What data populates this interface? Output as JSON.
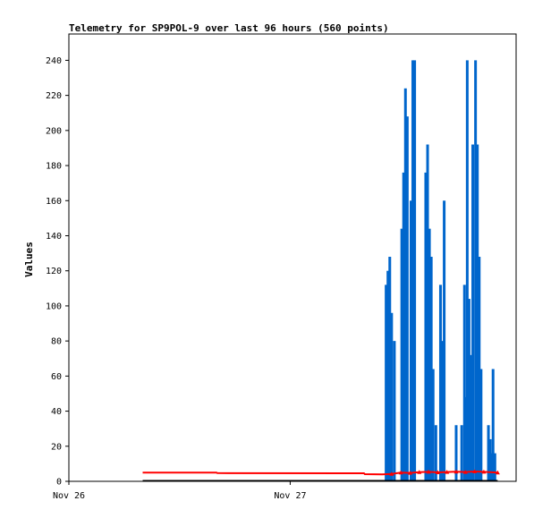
{
  "chart_data": {
    "type": "bar",
    "title": "Telemetry for SP9POL-9 over last 96 hours (560 points)",
    "xlabel": "",
    "ylabel": "Values",
    "x_tick_labels": [
      "Nov 26",
      "Nov 27"
    ],
    "y_tick_labels": [
      "0",
      "20",
      "40",
      "60",
      "80",
      "100",
      "120",
      "140",
      "160",
      "180",
      "200",
      "220",
      "240"
    ],
    "xlim_hours": [
      0,
      48.5
    ],
    "ylim": [
      0,
      255
    ],
    "grid": false,
    "legend": "none",
    "series": [
      {
        "type": "bar",
        "color": "#0066cc",
        "points": [
          [
            34.4,
            112
          ],
          [
            34.6,
            120
          ],
          [
            34.8,
            128
          ],
          [
            35.0,
            96
          ],
          [
            35.3,
            80
          ],
          [
            36.1,
            144
          ],
          [
            36.3,
            176
          ],
          [
            36.5,
            224
          ],
          [
            36.7,
            208
          ],
          [
            37.1,
            160
          ],
          [
            37.3,
            240
          ],
          [
            37.5,
            240
          ],
          [
            38.7,
            176
          ],
          [
            38.9,
            192
          ],
          [
            39.1,
            144
          ],
          [
            39.3,
            128
          ],
          [
            39.5,
            64
          ],
          [
            39.8,
            32
          ],
          [
            40.3,
            112
          ],
          [
            40.5,
            80
          ],
          [
            40.7,
            160
          ],
          [
            42.0,
            32
          ],
          [
            42.6,
            32
          ],
          [
            42.9,
            112
          ],
          [
            43.1,
            48
          ],
          [
            43.2,
            240
          ],
          [
            43.4,
            104
          ],
          [
            43.6,
            72
          ],
          [
            43.8,
            192
          ],
          [
            44.1,
            240
          ],
          [
            44.3,
            192
          ],
          [
            44.5,
            128
          ],
          [
            44.7,
            64
          ],
          [
            45.5,
            32
          ],
          [
            45.7,
            24
          ],
          [
            45.9,
            16
          ],
          [
            46.0,
            64
          ],
          [
            46.2,
            16
          ]
        ]
      },
      {
        "type": "line",
        "color": "#ff0000",
        "points": [
          [
            8.0,
            5
          ],
          [
            16.0,
            5
          ],
          [
            16.1,
            4.7
          ],
          [
            32.0,
            4.6
          ],
          [
            32.1,
            4.1
          ],
          [
            34.0,
            4.0
          ],
          [
            35.0,
            4.2
          ],
          [
            36.0,
            5.0
          ],
          [
            37.0,
            4.8
          ],
          [
            38.0,
            5.2
          ],
          [
            39.0,
            5.4
          ],
          [
            40.0,
            5.1
          ],
          [
            41.0,
            5.3
          ],
          [
            42.0,
            5.5
          ],
          [
            43.0,
            5.3
          ],
          [
            44.0,
            5.6
          ],
          [
            45.0,
            5.4
          ],
          [
            46.5,
            5.0
          ]
        ]
      },
      {
        "type": "line",
        "color": "#000000",
        "points": [
          [
            8.0,
            0.4
          ],
          [
            46.5,
            0.4
          ]
        ]
      }
    ]
  }
}
